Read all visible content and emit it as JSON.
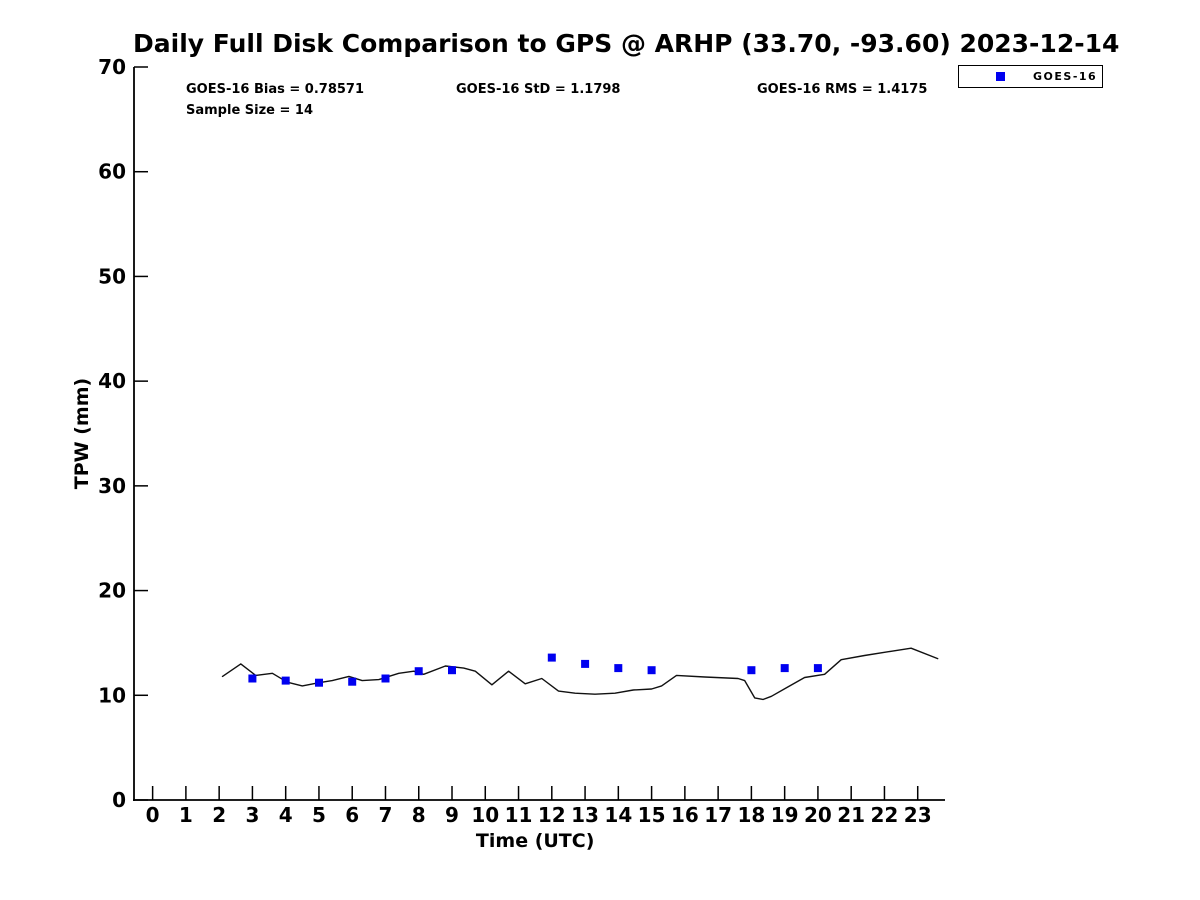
{
  "chart_data": {
    "type": "line",
    "title": "Daily Full Disk Comparison to GPS @ ARHP (33.70, -93.60) 2023-12-14",
    "xlabel": "Time (UTC)",
    "ylabel": "TPW (mm)",
    "xlim": [
      -0.56,
      23.7
    ],
    "ylim": [
      0,
      70
    ],
    "xticks": [
      0,
      1,
      2,
      3,
      4,
      5,
      6,
      7,
      8,
      9,
      10,
      11,
      12,
      13,
      14,
      15,
      16,
      17,
      18,
      19,
      20,
      21,
      22,
      23
    ],
    "yticks": [
      0,
      10,
      20,
      30,
      40,
      50,
      60,
      70
    ],
    "grid": false,
    "legend_position": "top-right-outside",
    "legend": [
      {
        "label": "GOES-16",
        "marker": "square",
        "color": "#0000f0"
      }
    ],
    "stats": {
      "bias": "GOES-16 Bias = 0.78571",
      "std": "GOES-16 StD = 1.1798",
      "rms": "GOES-16 RMS = 1.4175",
      "sample_size": "Sample Size = 14"
    },
    "series": [
      {
        "name": "GPS",
        "type": "line",
        "color": "#111111",
        "x": [
          2.1,
          2.65,
          3.1,
          3.6,
          4.05,
          4.5,
          5.0,
          5.4,
          5.9,
          6.3,
          6.8,
          7.4,
          7.85,
          8.15,
          8.8,
          9.35,
          9.7,
          10.2,
          10.7,
          11.2,
          11.7,
          12.2,
          12.7,
          13.3,
          13.9,
          14.45,
          15.0,
          15.3,
          15.75,
          16.6,
          17.6,
          17.8,
          18.1,
          18.35,
          18.6,
          19.1,
          19.6,
          20.2,
          20.7,
          21.4,
          22.2,
          22.8,
          23.6
        ],
        "y": [
          11.8,
          13.0,
          11.9,
          12.1,
          11.25,
          10.9,
          11.2,
          11.4,
          11.8,
          11.4,
          11.5,
          12.1,
          12.3,
          12.0,
          12.8,
          12.6,
          12.3,
          11.0,
          12.3,
          11.1,
          11.6,
          10.4,
          10.2,
          10.1,
          10.2,
          10.5,
          10.6,
          10.9,
          11.9,
          11.75,
          11.6,
          11.4,
          9.75,
          9.6,
          9.9,
          10.8,
          11.7,
          12.0,
          13.4,
          13.8,
          14.2,
          14.5,
          13.5
        ]
      },
      {
        "name": "GOES-16",
        "type": "scatter",
        "marker": "square",
        "marker_size": 8,
        "color": "#0000f0",
        "x": [
          3,
          4,
          5,
          6,
          7,
          8,
          9,
          12,
          13,
          14,
          15,
          18,
          19,
          20
        ],
        "y": [
          11.6,
          11.4,
          11.2,
          11.3,
          11.6,
          12.3,
          12.4,
          13.6,
          13.0,
          12.6,
          12.4,
          12.4,
          12.6,
          12.6
        ]
      }
    ]
  }
}
